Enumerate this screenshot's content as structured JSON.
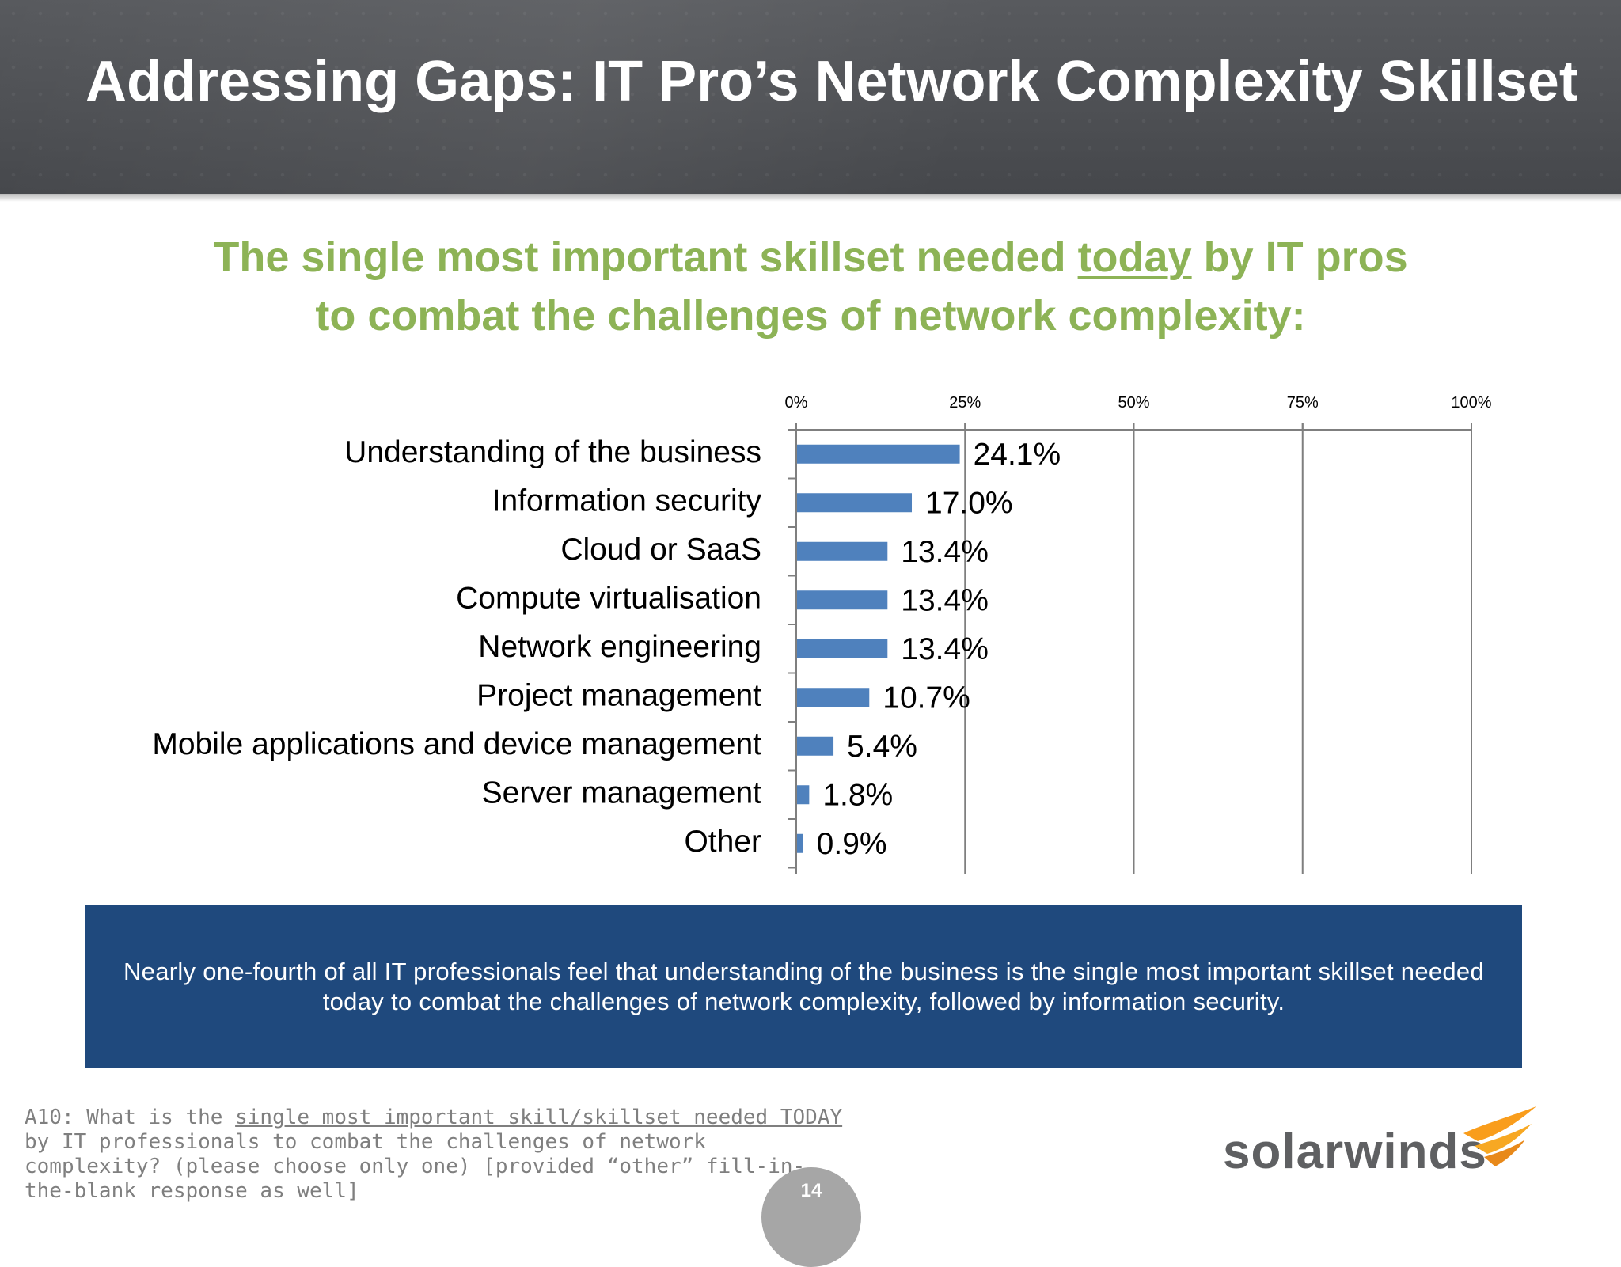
{
  "slide": {
    "title": "Addressing Gaps: IT Pro’s Network Complexity Skillset",
    "subtitle_part1": "The single most important skillset needed ",
    "subtitle_underlined": "today",
    "subtitle_part2": " by IT pros",
    "subtitle_line2": "to combat the challenges of network complexity:",
    "callout_text": "Nearly one-fourth of all IT professionals feel that understanding of the business is the single most important skillset needed today to combat the challenges of network complexity, followed by information security.",
    "footnote_prefix": "A10: What is the ",
    "footnote_underlined": "single most important skill/skillset needed TODAY",
    "footnote_suffix": " by IT professionals to combat the challenges of network complexity? (please choose only one) [provided “other” fill-in-the-blank response as well]",
    "logo_text": "solarwinds",
    "page_number": "14"
  },
  "colors": {
    "bar": "#4f81bd",
    "subtitle": "#8db356",
    "callout_bg": "#1f497d",
    "logo_orange": "#f99d1c"
  },
  "chart_data": {
    "type": "bar",
    "orientation": "horizontal",
    "categories": [
      "Understanding of the business",
      "Information security",
      "Cloud or SaaS",
      "Compute virtualisation",
      "Network engineering",
      "Project management",
      "Mobile applications and device management",
      "Server management",
      "Other"
    ],
    "values": [
      24.1,
      17.0,
      13.4,
      13.4,
      13.4,
      10.7,
      5.4,
      1.8,
      0.9
    ],
    "data_labels": [
      "24.1%",
      "17.0%",
      "13.4%",
      "13.4%",
      "13.4%",
      "10.7%",
      "5.4%",
      "1.8%",
      "0.9%"
    ],
    "xlim": [
      0,
      100
    ],
    "x_ticks": [
      "0%",
      "25%",
      "50%",
      "75%",
      "100%"
    ],
    "x_axis_position": "top",
    "grid": "vertical",
    "legend": "none"
  }
}
